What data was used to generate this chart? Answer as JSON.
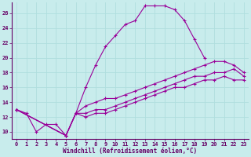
{
  "xlabel": "Windchill (Refroidissement éolien,°C)",
  "bg_color": "#c8ecec",
  "line_color": "#990099",
  "grid_color": "#b0dede",
  "xlim": [
    -0.5,
    23.5
  ],
  "ylim": [
    9.0,
    27.5
  ],
  "xticks": [
    0,
    1,
    2,
    3,
    4,
    5,
    6,
    7,
    8,
    9,
    10,
    11,
    12,
    13,
    14,
    15,
    16,
    17,
    18,
    19,
    20,
    21,
    22,
    23
  ],
  "yticks": [
    10,
    12,
    14,
    16,
    18,
    20,
    22,
    24,
    26
  ],
  "line1_x": [
    0,
    1,
    2,
    3,
    4,
    5,
    6,
    7,
    8,
    9,
    10,
    11,
    12,
    13,
    14,
    15,
    16,
    17,
    18,
    19
  ],
  "line1_y": [
    13.0,
    12.5,
    10.0,
    11.0,
    11.0,
    9.5,
    12.5,
    16.0,
    19.0,
    21.5,
    23.0,
    24.5,
    25.0,
    27.0,
    27.0,
    27.0,
    26.5,
    25.0,
    22.5,
    20.0
  ],
  "line2_x": [
    0,
    5,
    6,
    7,
    8,
    9,
    10,
    11,
    12,
    13,
    14,
    15,
    16,
    17,
    18,
    19,
    20,
    21,
    22,
    23
  ],
  "line2_y": [
    13.0,
    9.5,
    12.5,
    13.5,
    14.0,
    14.5,
    14.5,
    15.0,
    15.5,
    16.0,
    16.5,
    17.0,
    17.5,
    18.0,
    18.5,
    19.0,
    19.5,
    19.5,
    19.0,
    18.0
  ],
  "line3_x": [
    0,
    5,
    6,
    7,
    8,
    9,
    10,
    11,
    12,
    13,
    14,
    15,
    16,
    17,
    18,
    19,
    20,
    21,
    22,
    23
  ],
  "line3_y": [
    13.0,
    9.5,
    12.5,
    12.5,
    13.0,
    13.0,
    13.5,
    14.0,
    14.5,
    15.0,
    15.5,
    16.0,
    16.5,
    17.0,
    17.5,
    17.5,
    18.0,
    18.0,
    18.5,
    17.5
  ],
  "line4_x": [
    0,
    5,
    6,
    7,
    8,
    9,
    10,
    11,
    12,
    13,
    14,
    15,
    16,
    17,
    18,
    19,
    20,
    21,
    22,
    23
  ],
  "line4_y": [
    13.0,
    9.5,
    12.5,
    12.0,
    12.5,
    12.5,
    13.0,
    13.5,
    14.0,
    14.5,
    15.0,
    15.5,
    16.0,
    16.0,
    16.5,
    17.0,
    17.0,
    17.5,
    17.0,
    17.0
  ],
  "tick_fontsize": 5.0,
  "xlabel_fontsize": 5.5
}
